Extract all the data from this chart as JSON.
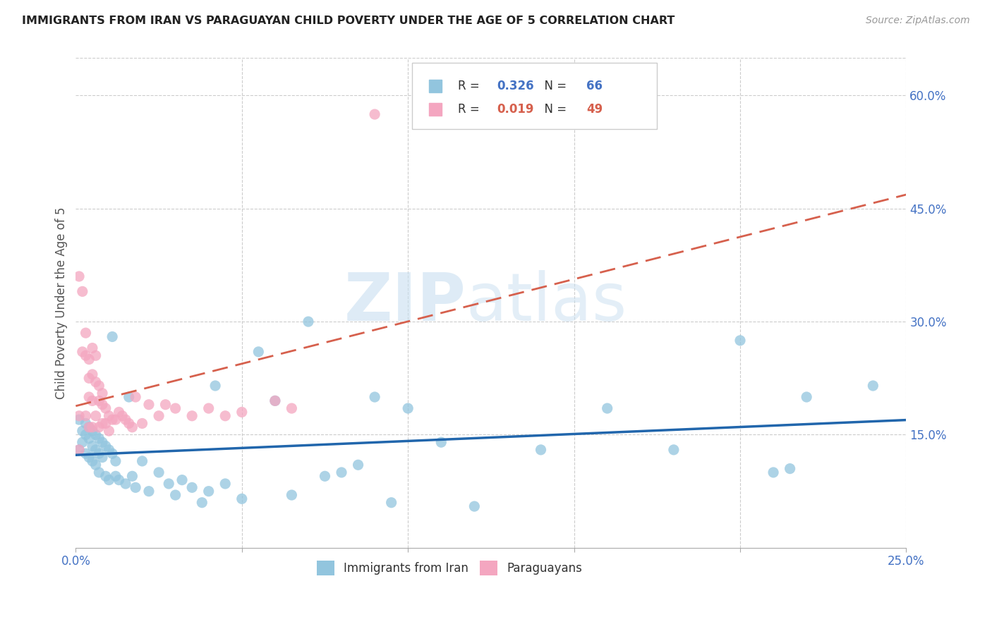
{
  "title": "IMMIGRANTS FROM IRAN VS PARAGUAYAN CHILD POVERTY UNDER THE AGE OF 5 CORRELATION CHART",
  "source": "Source: ZipAtlas.com",
  "ylabel": "Child Poverty Under the Age of 5",
  "xlim": [
    0.0,
    0.25
  ],
  "ylim": [
    0.0,
    0.65
  ],
  "legend1_label": "Immigrants from Iran",
  "legend2_label": "Paraguayans",
  "R1": "0.326",
  "N1": "66",
  "R2": "0.019",
  "N2": "49",
  "color_blue": "#92c5de",
  "color_pink": "#f4a6c0",
  "line_blue": "#2166ac",
  "line_pink": "#d6604d",
  "blue_scatter_x": [
    0.001,
    0.001,
    0.002,
    0.002,
    0.003,
    0.003,
    0.003,
    0.004,
    0.004,
    0.004,
    0.005,
    0.005,
    0.005,
    0.006,
    0.006,
    0.006,
    0.007,
    0.007,
    0.007,
    0.008,
    0.008,
    0.009,
    0.009,
    0.01,
    0.01,
    0.011,
    0.011,
    0.012,
    0.012,
    0.013,
    0.015,
    0.016,
    0.017,
    0.018,
    0.02,
    0.022,
    0.025,
    0.028,
    0.03,
    0.032,
    0.035,
    0.038,
    0.04,
    0.042,
    0.045,
    0.05,
    0.055,
    0.06,
    0.065,
    0.07,
    0.075,
    0.08,
    0.085,
    0.09,
    0.095,
    0.1,
    0.11,
    0.12,
    0.14,
    0.16,
    0.18,
    0.2,
    0.21,
    0.215,
    0.22,
    0.24
  ],
  "blue_scatter_y": [
    0.17,
    0.13,
    0.155,
    0.14,
    0.165,
    0.15,
    0.125,
    0.16,
    0.145,
    0.12,
    0.155,
    0.135,
    0.115,
    0.15,
    0.13,
    0.11,
    0.145,
    0.125,
    0.1,
    0.14,
    0.12,
    0.135,
    0.095,
    0.13,
    0.09,
    0.125,
    0.28,
    0.095,
    0.115,
    0.09,
    0.085,
    0.2,
    0.095,
    0.08,
    0.115,
    0.075,
    0.1,
    0.085,
    0.07,
    0.09,
    0.08,
    0.06,
    0.075,
    0.215,
    0.085,
    0.065,
    0.26,
    0.195,
    0.07,
    0.3,
    0.095,
    0.1,
    0.11,
    0.2,
    0.06,
    0.185,
    0.14,
    0.055,
    0.13,
    0.185,
    0.13,
    0.275,
    0.1,
    0.105,
    0.2,
    0.215
  ],
  "pink_scatter_x": [
    0.001,
    0.001,
    0.001,
    0.002,
    0.002,
    0.003,
    0.003,
    0.003,
    0.004,
    0.004,
    0.004,
    0.004,
    0.005,
    0.005,
    0.005,
    0.005,
    0.006,
    0.006,
    0.006,
    0.007,
    0.007,
    0.007,
    0.008,
    0.008,
    0.008,
    0.009,
    0.009,
    0.01,
    0.01,
    0.011,
    0.012,
    0.013,
    0.014,
    0.015,
    0.016,
    0.017,
    0.018,
    0.02,
    0.022,
    0.025,
    0.027,
    0.03,
    0.035,
    0.04,
    0.045,
    0.05,
    0.06,
    0.065,
    0.09
  ],
  "pink_scatter_y": [
    0.36,
    0.175,
    0.13,
    0.34,
    0.26,
    0.285,
    0.255,
    0.175,
    0.25,
    0.225,
    0.2,
    0.16,
    0.265,
    0.23,
    0.195,
    0.16,
    0.255,
    0.22,
    0.175,
    0.215,
    0.195,
    0.16,
    0.205,
    0.19,
    0.165,
    0.185,
    0.165,
    0.175,
    0.155,
    0.17,
    0.17,
    0.18,
    0.175,
    0.17,
    0.165,
    0.16,
    0.2,
    0.165,
    0.19,
    0.175,
    0.19,
    0.185,
    0.175,
    0.185,
    0.175,
    0.18,
    0.195,
    0.185,
    0.575
  ]
}
